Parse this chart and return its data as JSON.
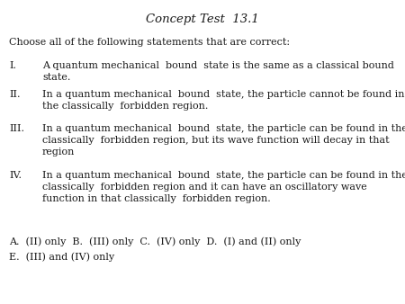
{
  "title": "Concept Test  13.1",
  "background_color": "#ffffff",
  "text_color": "#1a1a1a",
  "figsize": [
    4.5,
    3.38
  ],
  "dpi": 100,
  "prompt": "Choose all of the following statements that are correct:",
  "title_fontsize": 9.5,
  "body_fontsize": 8.0,
  "answer_fontsize": 8.0,
  "answers_line1": "A.  (II) only  B.  (III) only  C.  (IV) only  D.  (I) and (II) only",
  "answers_line2": "E.  (III) and (IV) only"
}
